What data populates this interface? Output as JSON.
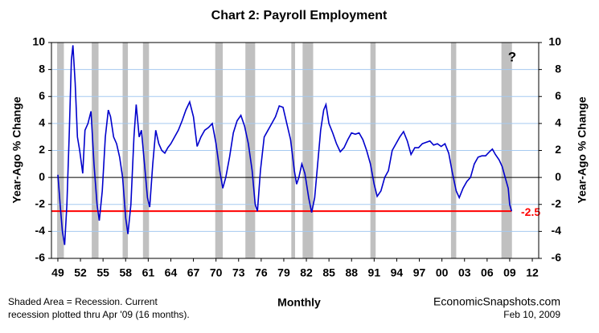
{
  "chart_data": {
    "type": "line",
    "title": "Chart 2: Payroll Employment",
    "ylabel": "Year-Ago % Change",
    "y2label": "Year-Ago % Change",
    "xlabel": "Monthly",
    "notes": [
      "Shaded Area = Recession. Current",
      "recession plotted thru Apr '09 (16 months)."
    ],
    "source": [
      "EconomicSnapshots.com",
      "Feb 10, 2009"
    ],
    "annotation": "?",
    "xlim": [
      1948.15,
      2012.85
    ],
    "xticks": [
      {
        "value": 1949,
        "label": "49"
      },
      {
        "value": 1952,
        "label": "52"
      },
      {
        "value": 1955,
        "label": "55"
      },
      {
        "value": 1958,
        "label": "58"
      },
      {
        "value": 1961,
        "label": "61"
      },
      {
        "value": 1964,
        "label": "64"
      },
      {
        "value": 1967,
        "label": "67"
      },
      {
        "value": 1970,
        "label": "70"
      },
      {
        "value": 1973,
        "label": "73"
      },
      {
        "value": 1976,
        "label": "76"
      },
      {
        "value": 1979,
        "label": "79"
      },
      {
        "value": 1982,
        "label": "82"
      },
      {
        "value": 1985,
        "label": "85"
      },
      {
        "value": 1988,
        "label": "88"
      },
      {
        "value": 1991,
        "label": "91"
      },
      {
        "value": 1994,
        "label": "94"
      },
      {
        "value": 1997,
        "label": "97"
      },
      {
        "value": 2000,
        "label": "00"
      },
      {
        "value": 2003,
        "label": "03"
      },
      {
        "value": 2006,
        "label": "06"
      },
      {
        "value": 2009,
        "label": "09"
      },
      {
        "value": 2012,
        "label": "12"
      }
    ],
    "ylim": [
      -6,
      10
    ],
    "yticks": [
      -6,
      -4,
      -2,
      0,
      2,
      4,
      6,
      8,
      10
    ],
    "y2lim": [
      -6,
      10
    ],
    "y2ticks": [
      -6,
      -4,
      -2,
      0,
      2,
      4,
      6,
      8,
      10
    ],
    "grid": true,
    "recession_color": "#c0c0c0",
    "recessions": [
      [
        1948.9,
        1949.8
      ],
      [
        1953.5,
        1954.4
      ],
      [
        1957.6,
        1958.3
      ],
      [
        1960.3,
        1961.1
      ],
      [
        1969.9,
        1970.9
      ],
      [
        1973.9,
        1975.2
      ],
      [
        1980.0,
        1980.5
      ],
      [
        1981.5,
        1982.9
      ],
      [
        1990.5,
        1991.2
      ],
      [
        2001.2,
        2001.9
      ],
      [
        2007.9,
        2009.3
      ]
    ],
    "reference_line": -2.5,
    "reference_color": "#ff0000",
    "series": [
      {
        "name": "Payroll Employment",
        "color": "#0000cc",
        "x": [
          1949.0,
          1949.3,
          1949.6,
          1949.9,
          1950.2,
          1950.5,
          1950.8,
          1951.0,
          1951.3,
          1951.6,
          1951.9,
          1952.3,
          1952.6,
          1953.0,
          1953.4,
          1953.8,
          1954.2,
          1954.5,
          1954.9,
          1955.3,
          1955.7,
          1956.0,
          1956.4,
          1956.8,
          1957.2,
          1957.6,
          1958.0,
          1958.3,
          1958.7,
          1959.1,
          1959.4,
          1959.8,
          1960.1,
          1960.5,
          1960.9,
          1961.2,
          1961.6,
          1962.0,
          1962.4,
          1962.8,
          1963.2,
          1963.6,
          1964.0,
          1964.5,
          1965.0,
          1965.5,
          1966.0,
          1966.5,
          1967.0,
          1967.5,
          1968.0,
          1968.5,
          1969.0,
          1969.5,
          1970.0,
          1970.5,
          1970.9,
          1971.3,
          1971.8,
          1972.3,
          1972.8,
          1973.3,
          1973.8,
          1974.3,
          1974.8,
          1975.2,
          1975.5,
          1975.9,
          1976.4,
          1976.9,
          1977.4,
          1977.9,
          1978.4,
          1978.9,
          1979.4,
          1979.9,
          1980.4,
          1980.7,
          1981.0,
          1981.4,
          1981.8,
          1982.3,
          1982.7,
          1983.1,
          1983.5,
          1983.9,
          1984.3,
          1984.6,
          1985.0,
          1985.5,
          1986.0,
          1986.5,
          1987.0,
          1987.5,
          1988.0,
          1988.5,
          1989.0,
          1989.5,
          1990.0,
          1990.5,
          1991.0,
          1991.4,
          1991.9,
          1992.4,
          1992.9,
          1993.4,
          1993.9,
          1994.4,
          1994.9,
          1995.4,
          1995.9,
          1996.4,
          1996.9,
          1997.4,
          1997.9,
          1998.4,
          1998.9,
          1999.4,
          1999.9,
          2000.4,
          2000.9,
          2001.4,
          2001.9,
          2002.3,
          2002.8,
          2003.3,
          2003.8,
          2004.3,
          2004.8,
          2005.3,
          2005.8,
          2006.3,
          2006.7,
          2007.1,
          2007.6,
          2008.0,
          2008.4,
          2008.8,
          2009.0,
          2009.25
        ],
        "values": [
          0.2,
          -2,
          -4,
          -5,
          -2,
          3,
          8.7,
          9.8,
          7,
          3,
          2,
          0.3,
          3.5,
          4,
          4.9,
          1,
          -2,
          -3.2,
          -1,
          3,
          5,
          4.5,
          3,
          2.5,
          1.5,
          0,
          -3,
          -4.2,
          -2,
          3,
          5.4,
          3,
          3.5,
          1,
          -1.5,
          -2.2,
          1,
          3.5,
          2.5,
          2,
          1.8,
          2.2,
          2.5,
          3,
          3.5,
          4.2,
          5,
          5.6,
          4.5,
          2.3,
          3,
          3.5,
          3.7,
          4,
          2.5,
          0.5,
          -0.8,
          0,
          1.5,
          3.3,
          4.2,
          4.6,
          3.8,
          2.5,
          0.5,
          -2,
          -2.5,
          0.5,
          3,
          3.5,
          4,
          4.5,
          5.3,
          5.2,
          4,
          2.8,
          0.5,
          -0.5,
          0,
          1,
          0.3,
          -1.5,
          -2.6,
          -1.5,
          1,
          3.5,
          5,
          5.4,
          4,
          3.3,
          2.5,
          1.9,
          2.2,
          2.8,
          3.3,
          3.2,
          3.3,
          2.8,
          2,
          1,
          -0.5,
          -1.4,
          -1,
          0,
          0.5,
          2,
          2.5,
          3,
          3.4,
          2.7,
          1.7,
          2.2,
          2.2,
          2.5,
          2.6,
          2.7,
          2.4,
          2.5,
          2.3,
          2.5,
          1.8,
          0.3,
          -1,
          -1.5,
          -0.8,
          -0.3,
          0,
          1,
          1.5,
          1.6,
          1.6,
          1.9,
          2.1,
          1.7,
          1.3,
          0.8,
          0,
          -0.8,
          -2,
          -2.5
        ]
      }
    ]
  }
}
